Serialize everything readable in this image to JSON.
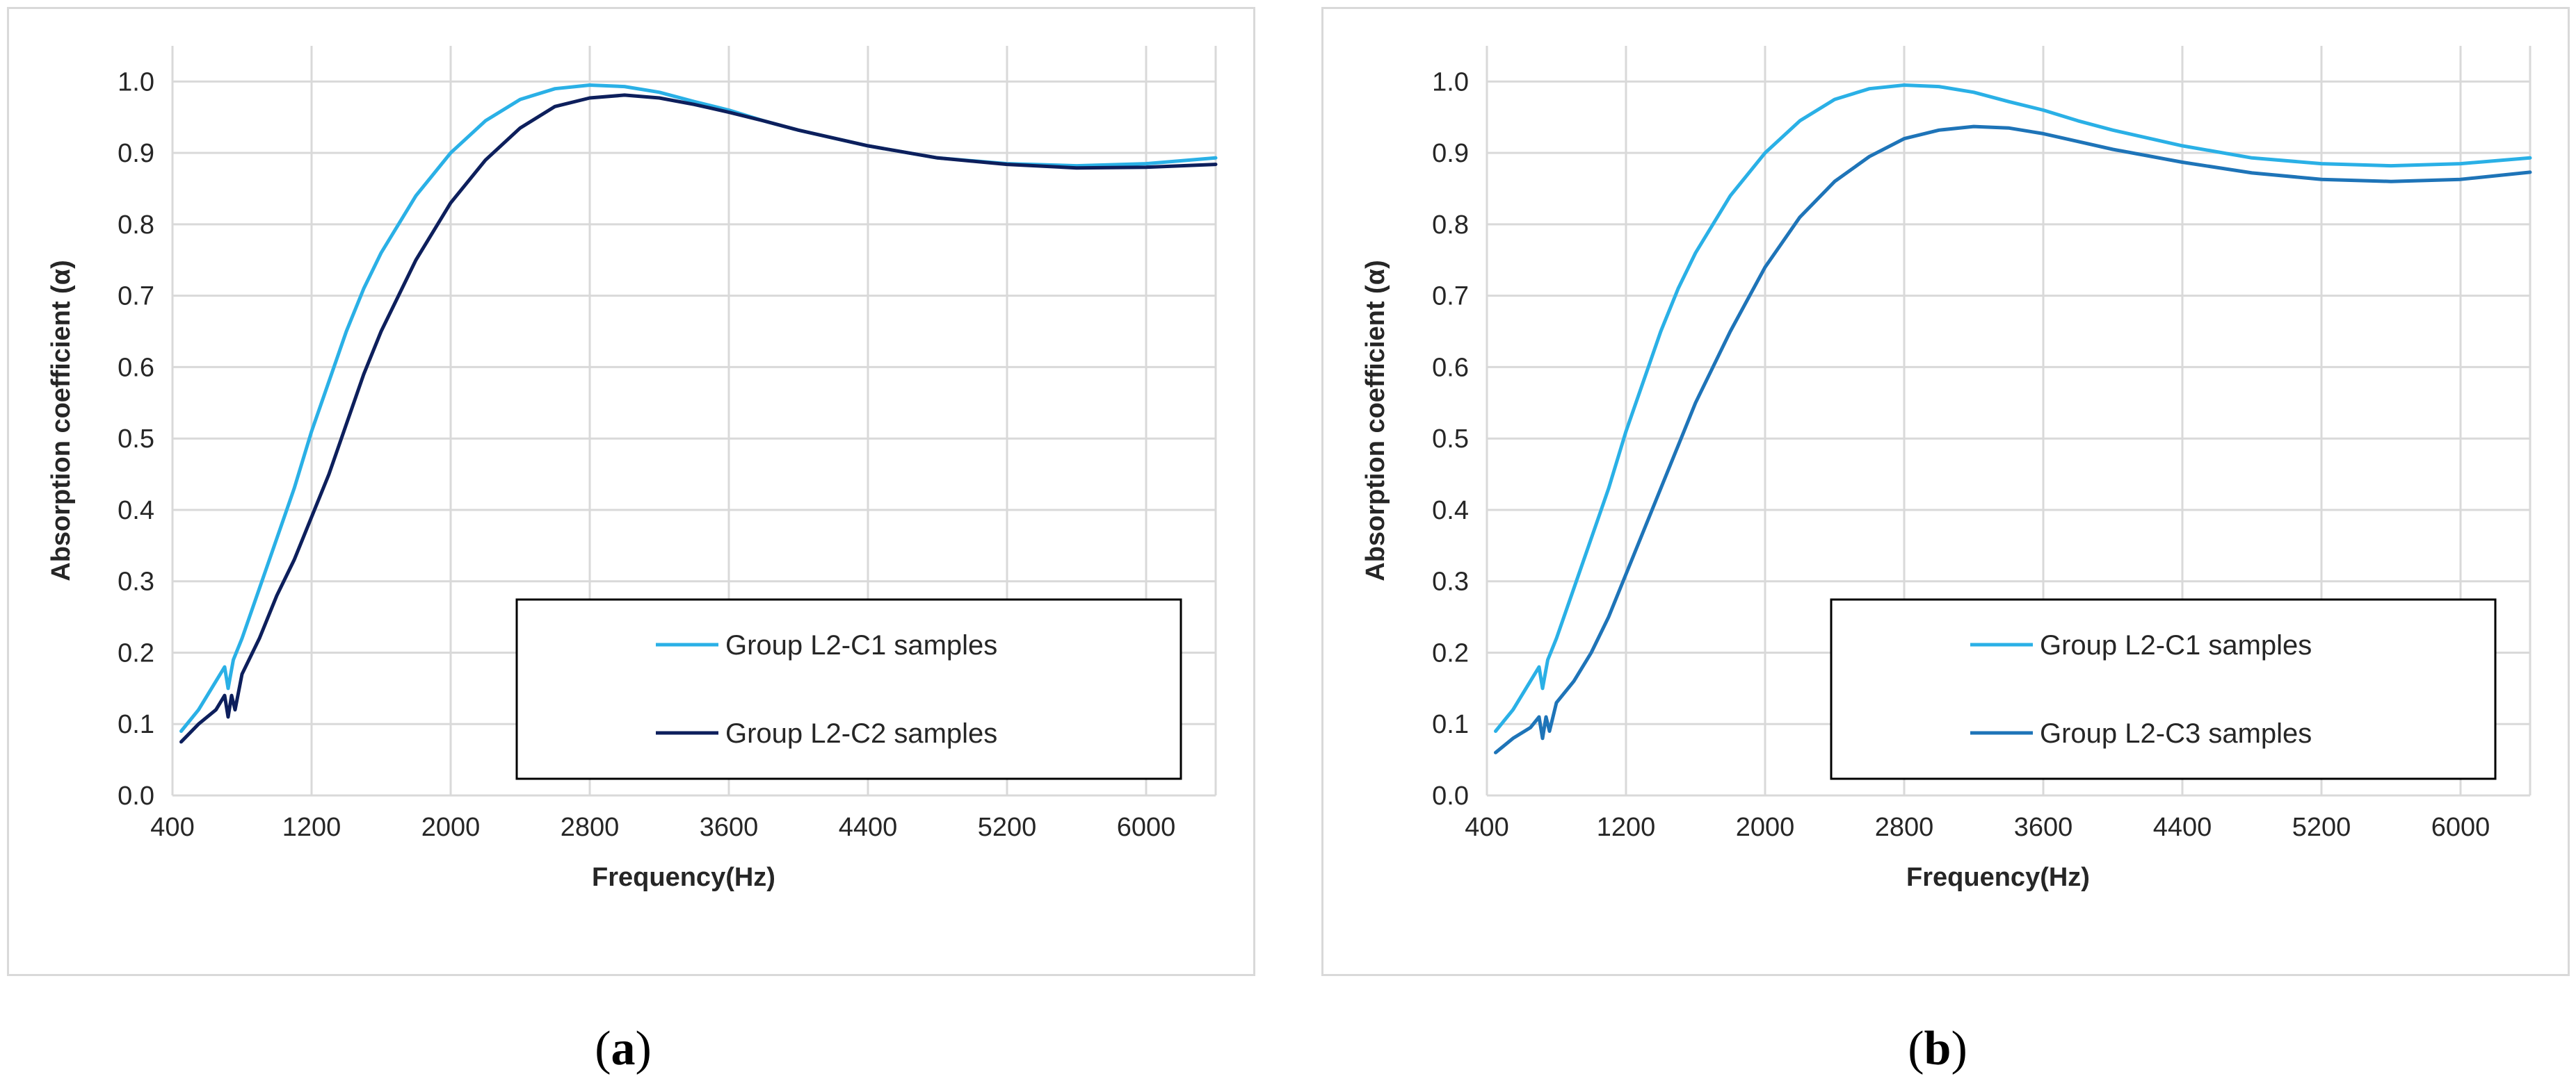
{
  "chart_data": [
    {
      "type": "line",
      "panel": "a",
      "caption": "a",
      "xlabel": "Frequency(Hz)",
      "ylabel": "Absorption coefficient (α)",
      "xlim": [
        400,
        6400
      ],
      "ylim": [
        0,
        1.05
      ],
      "xticks": [
        400,
        1200,
        2000,
        2800,
        3600,
        4400,
        5200,
        6000
      ],
      "yticks": [
        0.0,
        0.1,
        0.2,
        0.3,
        0.4,
        0.5,
        0.6,
        0.7,
        0.8,
        0.9,
        1.0
      ],
      "xtick_labels": [
        "400",
        "1200",
        "2000",
        "2800",
        "3600",
        "4400",
        "5200",
        "6000"
      ],
      "ytick_labels": [
        "0.0",
        "0.1",
        "0.2",
        "0.3",
        "0.4",
        "0.5",
        "0.6",
        "0.7",
        "0.8",
        "0.9",
        "1.0"
      ],
      "grid": true,
      "legend_position": "lower-right",
      "series": [
        {
          "name": "Group L2-C1 samples",
          "color": "#2ab0e6",
          "x": [
            450,
            550,
            650,
            700,
            720,
            750,
            800,
            900,
            1000,
            1100,
            1200,
            1300,
            1400,
            1500,
            1600,
            1800,
            2000,
            2200,
            2400,
            2600,
            2800,
            3000,
            3200,
            3400,
            3600,
            3800,
            4000,
            4400,
            4800,
            5200,
            5600,
            6000,
            6400
          ],
          "y": [
            0.09,
            0.12,
            0.16,
            0.18,
            0.15,
            0.19,
            0.22,
            0.29,
            0.36,
            0.43,
            0.51,
            0.58,
            0.65,
            0.71,
            0.76,
            0.84,
            0.9,
            0.945,
            0.975,
            0.99,
            0.995,
            0.993,
            0.985,
            0.972,
            0.96,
            0.945,
            0.932,
            0.91,
            0.893,
            0.885,
            0.882,
            0.885,
            0.893
          ]
        },
        {
          "name": "Group L2-C2 samples",
          "color": "#0d1f5c",
          "x": [
            450,
            550,
            650,
            700,
            720,
            740,
            760,
            800,
            900,
            1000,
            1100,
            1200,
            1300,
            1400,
            1500,
            1600,
            1800,
            2000,
            2200,
            2400,
            2600,
            2800,
            3000,
            3200,
            3400,
            3600,
            3800,
            4000,
            4400,
            4800,
            5200,
            5600,
            6000,
            6400
          ],
          "y": [
            0.075,
            0.1,
            0.12,
            0.14,
            0.11,
            0.14,
            0.12,
            0.17,
            0.22,
            0.28,
            0.33,
            0.39,
            0.45,
            0.52,
            0.59,
            0.65,
            0.75,
            0.83,
            0.89,
            0.935,
            0.965,
            0.977,
            0.981,
            0.977,
            0.968,
            0.957,
            0.945,
            0.932,
            0.91,
            0.893,
            0.884,
            0.879,
            0.88,
            0.884
          ]
        }
      ]
    },
    {
      "type": "line",
      "panel": "b",
      "caption": "b",
      "xlabel": "Frequency(Hz)",
      "ylabel": "Absorption coefficient (α)",
      "xlim": [
        400,
        6400
      ],
      "ylim": [
        0,
        1.05
      ],
      "xticks": [
        400,
        1200,
        2000,
        2800,
        3600,
        4400,
        5200,
        6000
      ],
      "yticks": [
        0.0,
        0.1,
        0.2,
        0.3,
        0.4,
        0.5,
        0.6,
        0.7,
        0.8,
        0.9,
        1.0
      ],
      "xtick_labels": [
        "400",
        "1200",
        "2000",
        "2800",
        "3600",
        "4400",
        "5200",
        "6000"
      ],
      "ytick_labels": [
        "0.0",
        "0.1",
        "0.2",
        "0.3",
        "0.4",
        "0.5",
        "0.6",
        "0.7",
        "0.8",
        "0.9",
        "1.0"
      ],
      "grid": true,
      "legend_position": "lower-right",
      "series": [
        {
          "name": "Group L2-C1 samples",
          "color": "#2ab0e6",
          "x": [
            450,
            550,
            650,
            700,
            720,
            750,
            800,
            900,
            1000,
            1100,
            1200,
            1300,
            1400,
            1500,
            1600,
            1800,
            2000,
            2200,
            2400,
            2600,
            2800,
            3000,
            3200,
            3400,
            3600,
            3800,
            4000,
            4400,
            4800,
            5200,
            5600,
            6000,
            6400
          ],
          "y": [
            0.09,
            0.12,
            0.16,
            0.18,
            0.15,
            0.19,
            0.22,
            0.29,
            0.36,
            0.43,
            0.51,
            0.58,
            0.65,
            0.71,
            0.76,
            0.84,
            0.9,
            0.945,
            0.975,
            0.99,
            0.995,
            0.993,
            0.985,
            0.972,
            0.96,
            0.945,
            0.932,
            0.91,
            0.893,
            0.885,
            0.882,
            0.885,
            0.893
          ]
        },
        {
          "name": "Group L2-C3 samples",
          "color": "#1e74b8",
          "x": [
            450,
            550,
            650,
            700,
            720,
            740,
            760,
            800,
            900,
            1000,
            1100,
            1200,
            1300,
            1400,
            1500,
            1600,
            1800,
            2000,
            2200,
            2400,
            2600,
            2800,
            3000,
            3200,
            3400,
            3600,
            3800,
            4000,
            4400,
            4800,
            5200,
            5600,
            6000,
            6400
          ],
          "y": [
            0.06,
            0.08,
            0.095,
            0.11,
            0.08,
            0.11,
            0.09,
            0.13,
            0.16,
            0.2,
            0.25,
            0.31,
            0.37,
            0.43,
            0.49,
            0.55,
            0.65,
            0.74,
            0.81,
            0.86,
            0.895,
            0.92,
            0.932,
            0.937,
            0.935,
            0.927,
            0.916,
            0.905,
            0.887,
            0.872,
            0.863,
            0.86,
            0.863,
            0.873
          ]
        }
      ]
    }
  ]
}
